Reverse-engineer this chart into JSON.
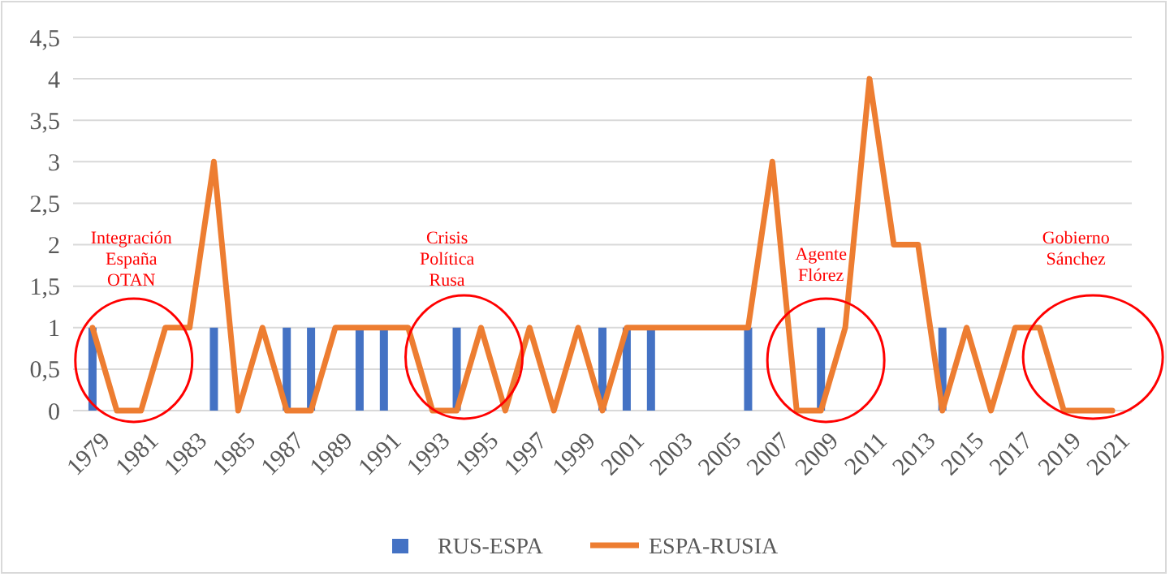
{
  "chart_data": {
    "type": "bar",
    "categories": [
      "1979",
      null,
      "1981",
      null,
      "1983",
      null,
      "1985",
      null,
      "1987",
      null,
      "1989",
      null,
      "1991",
      null,
      "1993",
      null,
      "1995",
      null,
      "1997",
      null,
      "1999",
      null,
      "2001",
      null,
      "2003",
      null,
      "2005",
      null,
      "2007",
      null,
      "2009",
      null,
      "2011",
      null,
      "2013",
      null,
      "2015",
      null,
      "2017",
      null,
      "2019",
      null,
      "2021"
    ],
    "series": [
      {
        "name": "RUS-ESPA",
        "color": "#4472c4",
        "values": [
          1,
          null,
          null,
          null,
          null,
          1,
          null,
          null,
          1,
          1,
          null,
          1,
          1,
          null,
          null,
          1,
          null,
          null,
          null,
          null,
          null,
          1,
          1,
          1,
          null,
          null,
          null,
          1,
          null,
          null,
          1,
          null,
          null,
          null,
          null,
          1,
          null,
          null,
          null,
          null,
          null,
          null,
          null
        ]
      },
      {
        "name": "ESPA-RUSIA",
        "type": "line",
        "color": "#ed7d31",
        "values": [
          1,
          0,
          0,
          1,
          1,
          3,
          0,
          1,
          0,
          0,
          1,
          1,
          1,
          1,
          0,
          0,
          1,
          0,
          1,
          0,
          1,
          0,
          1,
          1,
          1,
          1,
          1,
          1,
          3,
          0,
          0,
          1,
          4,
          2,
          2,
          0,
          1,
          0,
          1,
          1,
          0,
          0,
          0
        ]
      }
    ],
    "ylim": [
      0,
      4.5
    ],
    "yticks": [
      0,
      {
        "value": 0.5,
        "label": "0,5"
      },
      1,
      {
        "value": 1.5,
        "label": "1,5"
      },
      2,
      {
        "value": 2.5,
        "label": "2,5"
      },
      3,
      {
        "value": 3.5,
        "label": "3,5"
      },
      4,
      {
        "value": 4.5,
        "label": "4,5"
      }
    ],
    "grid": "y",
    "legend": "bottom",
    "annotations": [
      "Integración España OTAN",
      "Crisis Política Rusa",
      "Agente Flórez",
      "Gobierno Sánchez"
    ]
  }
}
